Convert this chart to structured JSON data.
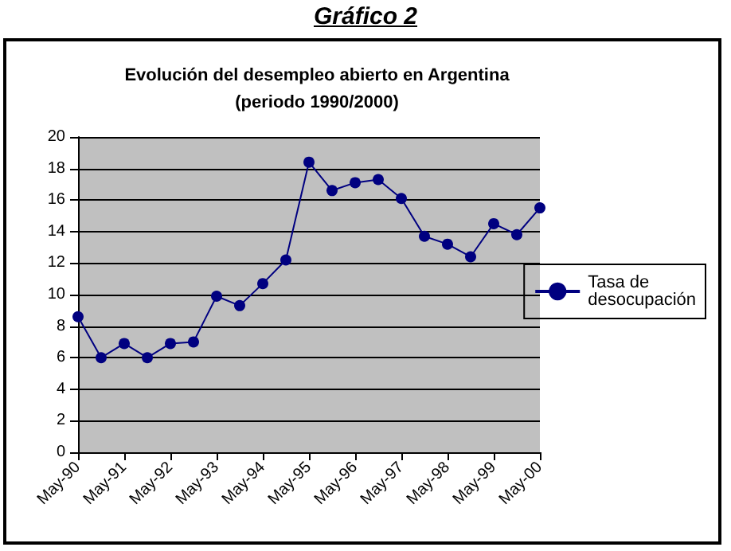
{
  "chart_data": {
    "type": "line",
    "title": "Gráfico 2",
    "subtitle": "Evolución del desempleo abierto en Argentina\n(periodo 1990/2000)",
    "categories": [
      "May-90",
      null,
      "May-91",
      null,
      "May-92",
      null,
      "May-93",
      null,
      "May-94",
      null,
      "May-95",
      null,
      "May-96",
      null,
      "May-97",
      null,
      "May-98",
      null,
      "May-99",
      null,
      "May-00"
    ],
    "series": [
      {
        "name": "Tasa de desocupación",
        "color": "#000080",
        "values": [
          8.6,
          6.0,
          6.9,
          6.0,
          6.9,
          7.0,
          9.9,
          9.3,
          10.7,
          12.2,
          18.4,
          16.6,
          17.1,
          17.3,
          16.1,
          13.7,
          13.2,
          12.4,
          14.5,
          13.8,
          15.5
        ]
      }
    ],
    "ylim": [
      0,
      20
    ],
    "yticks": [
      0,
      2,
      4,
      6,
      8,
      10,
      12,
      14,
      16,
      18,
      20
    ],
    "grid": "y",
    "legend": "right",
    "marker": "circle",
    "line_style": "solid"
  }
}
